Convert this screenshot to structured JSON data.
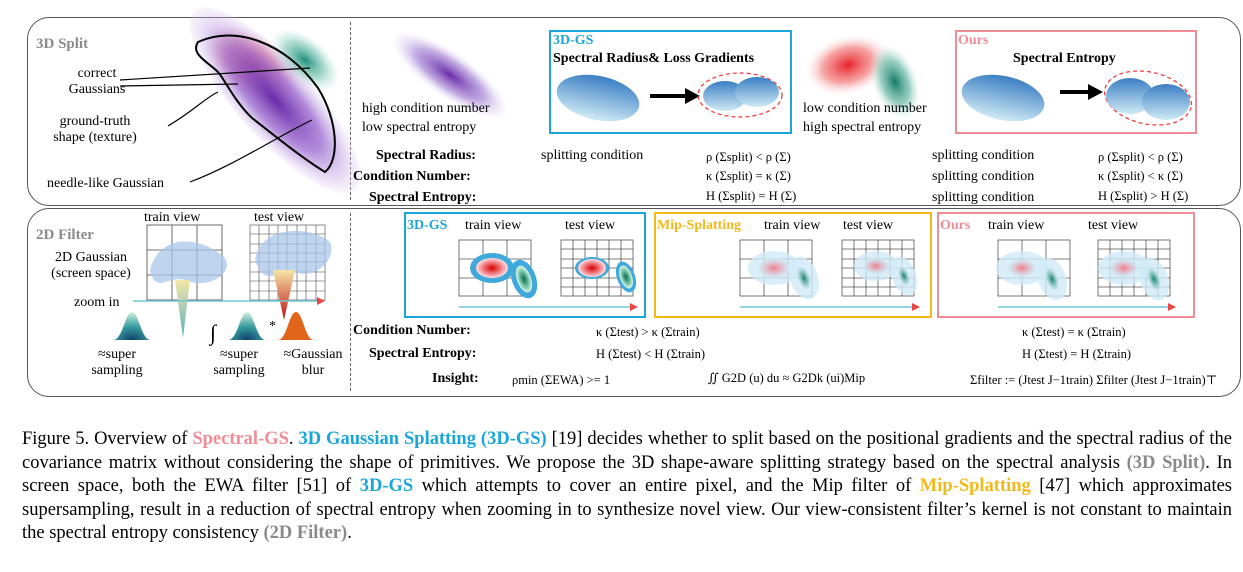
{
  "split": {
    "section_label": "3D Split",
    "correct_gaussians": [
      "correct",
      "Gaussians"
    ],
    "ground_truth": [
      "ground-truth",
      "shape (texture)"
    ],
    "needle": "needle-like Gaussian",
    "high_cond": "high condition number",
    "low_entropy": "low spectral entropy",
    "gs_label": "3D-GS",
    "gs_title": "Spectral Radius& Loss Gradients",
    "low_cond": "low condition number",
    "high_entropy": "high spectral entropy",
    "ours_label": "Ours",
    "ours_title": "Spectral Entropy",
    "rows": [
      {
        "label": "Spectral Radius:",
        "mid": "splitting condition",
        "mid_eq": "ρ (Σsplit) < ρ (Σ)",
        "right": "splitting condition",
        "right_eq": "ρ (Σsplit) < ρ (Σ)"
      },
      {
        "label": "Condition Number:",
        "mid": "",
        "mid_eq": "κ (Σsplit) = κ (Σ)",
        "right": "splitting condition",
        "right_eq": "κ (Σsplit) < κ (Σ)"
      },
      {
        "label": "Spectral Entropy:",
        "mid": "",
        "mid_eq": "H (Σsplit) = H (Σ)",
        "right": "splitting condition",
        "right_eq": "H (Σsplit) > H (Σ)"
      }
    ]
  },
  "filter": {
    "section_label": "2D Filter",
    "train_view": "train view",
    "test_view": "test view",
    "gaussian_2d": [
      "2D Gaussian",
      "(screen space)"
    ],
    "zoom_in": "zoom in",
    "super1": [
      "≈super",
      "sampling"
    ],
    "super2": [
      "≈super",
      "sampling"
    ],
    "blur": [
      "≈Gaussian",
      "blur"
    ],
    "gs_label": "3D-GS",
    "mip_label": "Mip-Splatting",
    "ours_label": "Ours",
    "rows": [
      {
        "label": "Condition Number:",
        "mid_eq": "κ (Σtest) > κ (Σtrain)",
        "right_eq": "κ (Σtest) = κ (Σtrain)"
      },
      {
        "label": "Spectral Entropy:",
        "mid_eq": "H (Σtest) < H (Σtrain)",
        "right_eq": "H (Σtest) = H (Σtrain)"
      },
      {
        "label": "Insight:",
        "left_eq": "ρmin (ΣEWA) >= 1",
        "mid_eq": "∬ G2D (u) du ≈ G2Dk (ui)Mip",
        "right_eq": "Σfilter := (Jtest J−1train) Σfilter (Jtest J−1train)⊤"
      }
    ]
  },
  "caption": {
    "fig": "Figure 5. Overview of ",
    "spectral_gs": "Spectral-GS",
    "t1": ". ",
    "gs_full": "3D Gaussian Splatting (3D-GS)",
    "t2": " [19] decides whether to split based on the positional gradients and the spectral radius of the covariance matrix without considering the shape of primitives. We propose the 3D shape-aware splitting strategy based on the spectral analysis ",
    "split_ref": "(3D Split)",
    "t3": ". In screen space, both the EWA filter [51] of ",
    "gs_short": "3D-GS",
    "t4": " which attempts to cover an entire pixel, and the Mip filter of ",
    "mip": "Mip-Splatting",
    "t5": " [47] which approximates supersampling, result in a reduction of spectral entropy when zooming in to synthesize novel view. Our view-consistent filter’s kernel is not constant to maintain the spectral entropy consistency ",
    "filter_ref": "(2D Filter)",
    "t6": "."
  },
  "colors": {
    "blue": "#1aa6d8",
    "pink": "#ef8c96",
    "yellow": "#f2b91a",
    "gray": "#8a8a8a"
  }
}
